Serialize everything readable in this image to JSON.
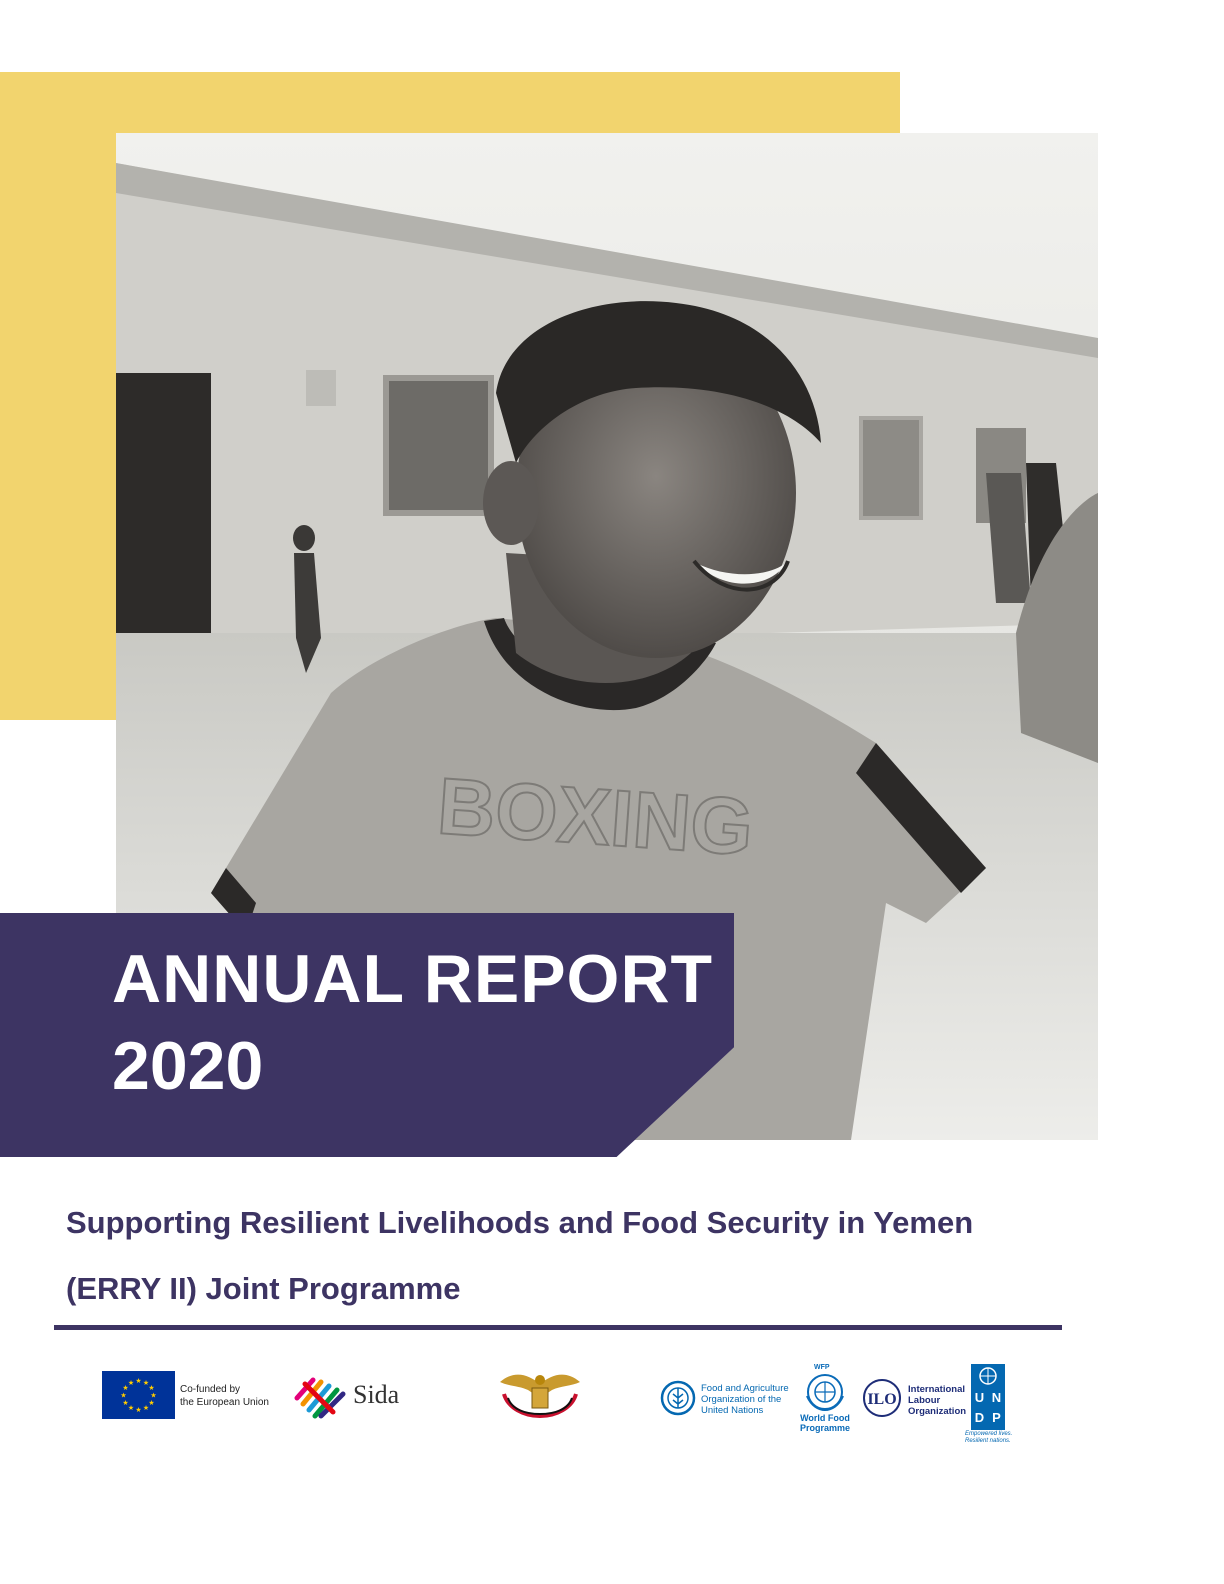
{
  "cover": {
    "title_line_1": "ANNUAL REPORT",
    "title_line_2": "2020",
    "subtitle_line_1": "Supporting Resilient Livelihoods and Food Security in Yemen",
    "subtitle_line_2": "(ERRY II) Joint Programme",
    "photo": "black-and-white photo of a smiling boy in front of a building"
  },
  "logos": {
    "eu": "Co-funded by the European Union",
    "eu_line_1": "Co-funded by",
    "eu_line_2": "the European Union",
    "sida": "Sida",
    "yemen": "Republic of Yemen emblem",
    "fao_line_1": "Food and Agriculture",
    "fao_line_2": "Organization of the",
    "fao_line_3": "United Nations",
    "wfp_top": "WFP",
    "wfp_line_1": "World Food",
    "wfp_line_2": "Programme",
    "ilo_line_1": "International",
    "ilo_line_2": "Labour",
    "ilo_line_3": "Organization",
    "undp_letters": [
      "U",
      "N",
      "D",
      "P"
    ],
    "undp_tagline_1": "Empowered lives.",
    "undp_tagline_2": "Resilient nations."
  },
  "colors": {
    "accent_yellow": "#f2d46e",
    "brand_purple": "#3d3463",
    "eu_blue": "#003399",
    "undp_blue": "#0468b1"
  }
}
